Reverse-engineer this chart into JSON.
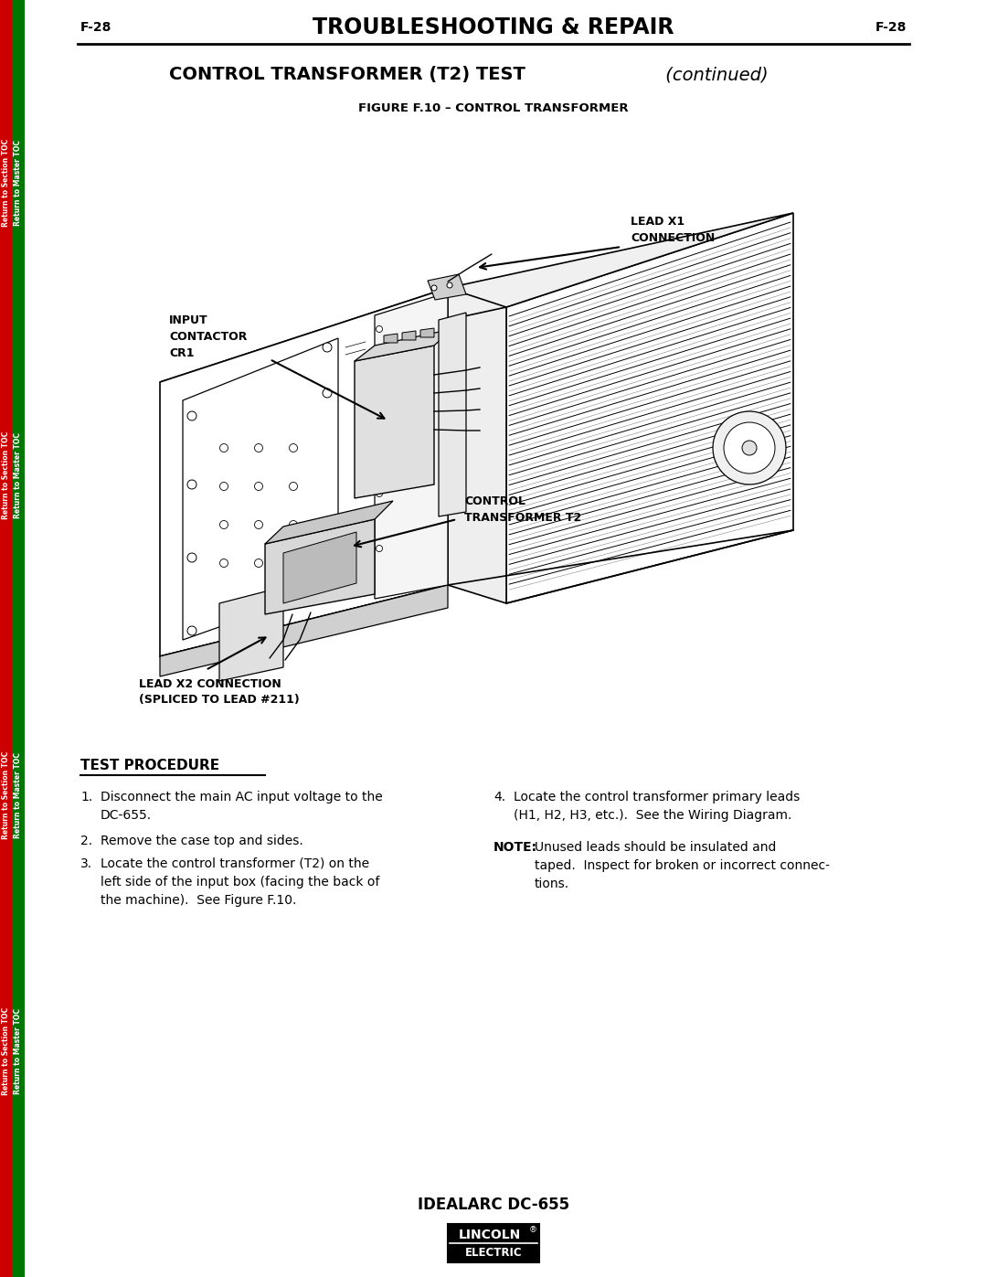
{
  "page_number": "F-28",
  "title": "TROUBLESHOOTING & REPAIR",
  "section_title": "CONTROL TRANSFORMER (T2) TEST",
  "section_title_italic": " (continued)",
  "figure_title": "FIGURE F.10 – CONTROL TRANSFORMER",
  "labels": {
    "lead_x1": "LEAD X1\nCONNECTION",
    "input_contactor": "INPUT\nCONTACTOR\nCR1",
    "control_transformer": "CONTROL\nTRANSFORMER T2",
    "lead_x2": "LEAD X2 CONNECTION\n(SPLICED TO LEAD #211)"
  },
  "test_procedure_title": "TEST PROCEDURE",
  "footer_text": "IDEALARC DC-655",
  "sidebar_left_color": "#cc0000",
  "sidebar_right_color": "#007700",
  "bg_color": "#ffffff",
  "text_color": "#000000"
}
